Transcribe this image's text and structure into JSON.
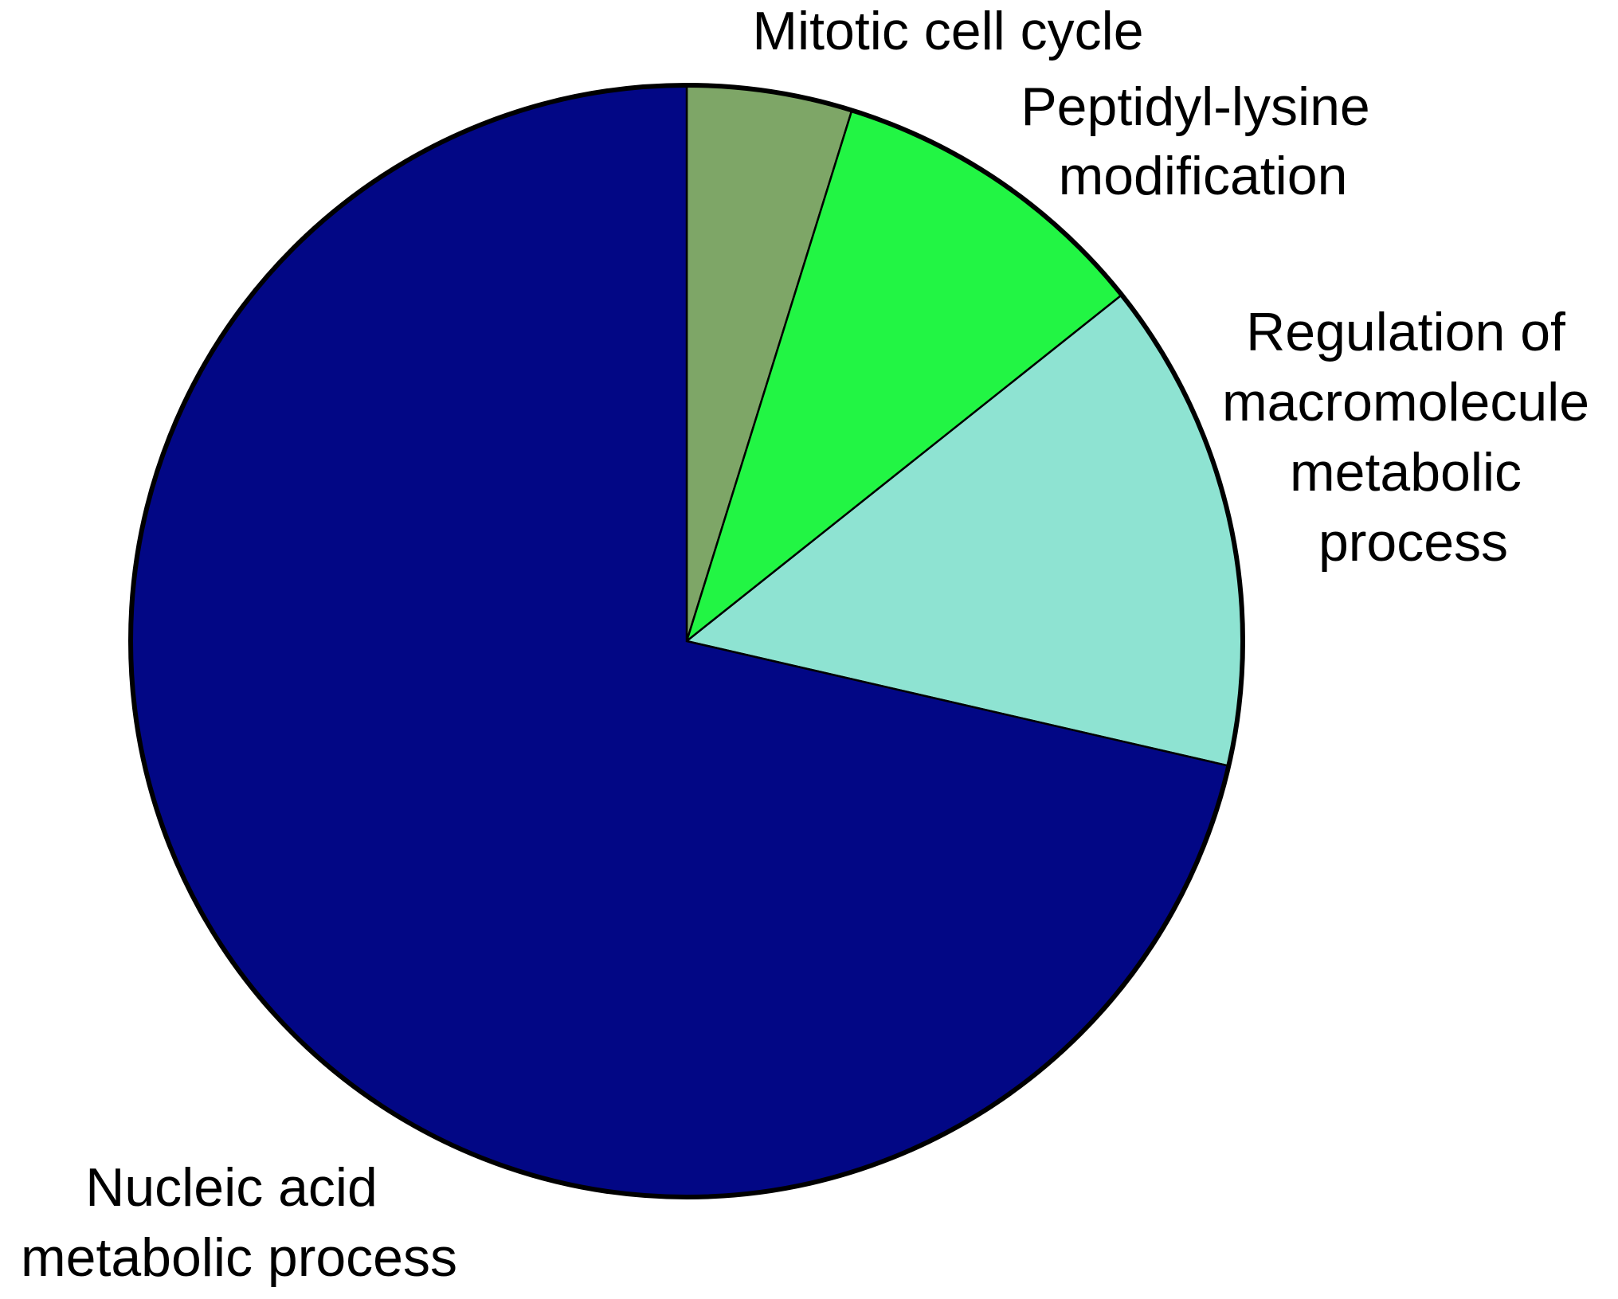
{
  "chart_data": {
    "type": "pie",
    "start_angle_deg": 0,
    "direction": "clockwise",
    "slices": [
      {
        "label_lines": [
          "Mitotic cell cycle"
        ],
        "value": 4.8,
        "color": "#7ea667"
      },
      {
        "label_lines": [
          "Peptidyl-lysine",
          "modification"
        ],
        "value": 9.5,
        "color": "#22f544"
      },
      {
        "label_lines": [
          "Regulation of",
          "macromolecule",
          "metabolic",
          "process"
        ],
        "value": 14.3,
        "color": "#8ee3d2"
      },
      {
        "label_lines": [
          "Nucleic acid",
          "metabolic process"
        ],
        "value": 71.4,
        "color": "#020785"
      }
    ]
  }
}
